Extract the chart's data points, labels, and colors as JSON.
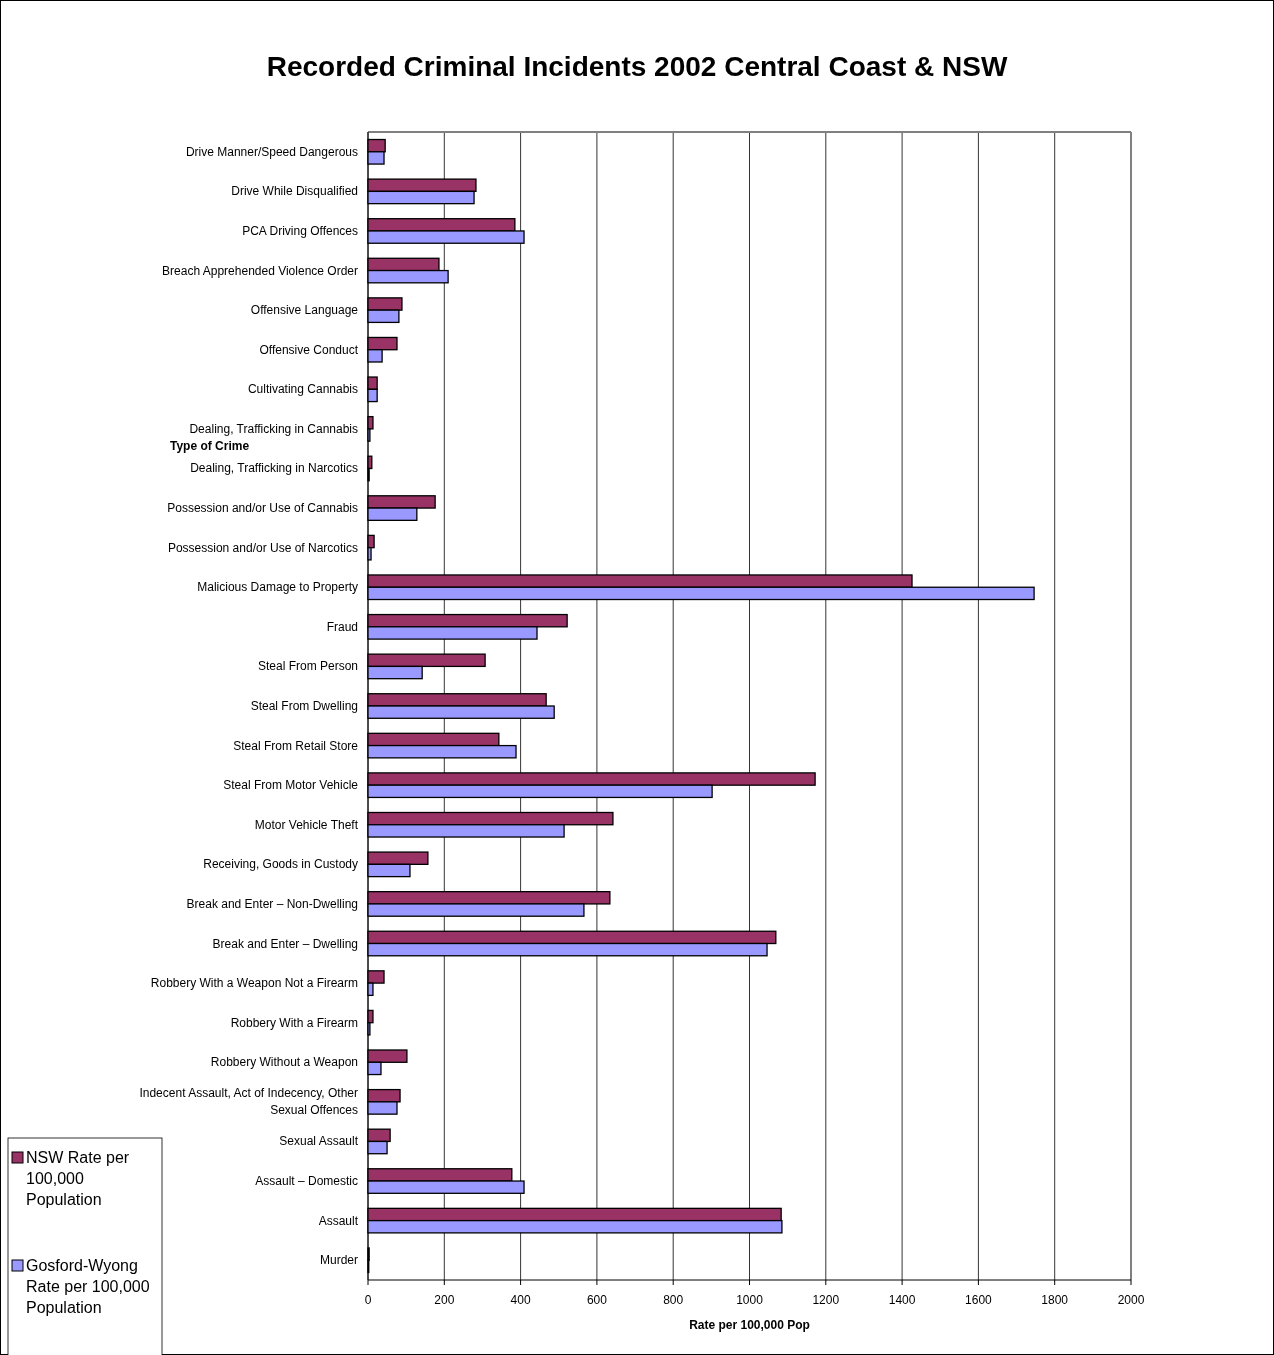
{
  "chart_data": {
    "type": "bar",
    "orientation": "horizontal",
    "title": "Recorded Criminal Incidents 2002 Central Coast & NSW",
    "xlabel": "Rate per 100,000 Pop",
    "ylabel": "Type of Crime",
    "categories": [
      "Drive Manner/Speed Dangerous",
      "Drive While Disqualified",
      "PCA Driving Offences",
      "Breach Apprehended Violence Order",
      "Offensive Language",
      "Offensive Conduct",
      "Cultivating Cannabis",
      "Dealing, Trafficking in Cannabis",
      "Dealing, Trafficking in Narcotics",
      "Possession and/or Use of Cannabis",
      "Possession and/or Use of Narcotics",
      "Malicious Damage to Property",
      "Fraud",
      "Steal From Person",
      "Steal From Dwelling",
      "Steal From Retail Store",
      "Steal From Motor Vehicle",
      "Motor Vehicle Theft",
      "Receiving, Goods in Custody",
      "Break and Enter – Non-Dwelling",
      "Break and Enter – Dwelling",
      "Robbery With a Weapon Not a Firearm",
      "Robbery With a Firearm",
      "Robbery Without a Weapon",
      "Indecent Assault, Act of Indecency, Other Sexual Offences",
      "Sexual Assault",
      "Assault – Domestic",
      "Assault",
      "Murder"
    ],
    "series": [
      {
        "name": "NSW Rate per 100,000 Population",
        "color": "#993366",
        "values": [
          45,
          283,
          385,
          186,
          89,
          76,
          24,
          13,
          10,
          176,
          16,
          1426,
          522,
          307,
          467,
          343,
          1172,
          642,
          157,
          634,
          1069,
          42,
          13,
          102,
          84,
          58,
          377,
          1083,
          3
        ]
      },
      {
        "name": "Gosford-Wyong Rate per 100,000 Population",
        "color": "#9999ff",
        "values": [
          42,
          278,
          409,
          210,
          81,
          37,
          24,
          5,
          3,
          128,
          8,
          1746,
          443,
          142,
          488,
          388,
          902,
          514,
          110,
          566,
          1046,
          13,
          5,
          34,
          76,
          50,
          409,
          1085,
          2
        ]
      }
    ],
    "xlim": [
      0,
      2000
    ],
    "xticks": [
      0,
      200,
      400,
      600,
      800,
      1000,
      1200,
      1400,
      1600,
      1800,
      2000
    ],
    "grid": "x",
    "legend": "bottom left"
  }
}
